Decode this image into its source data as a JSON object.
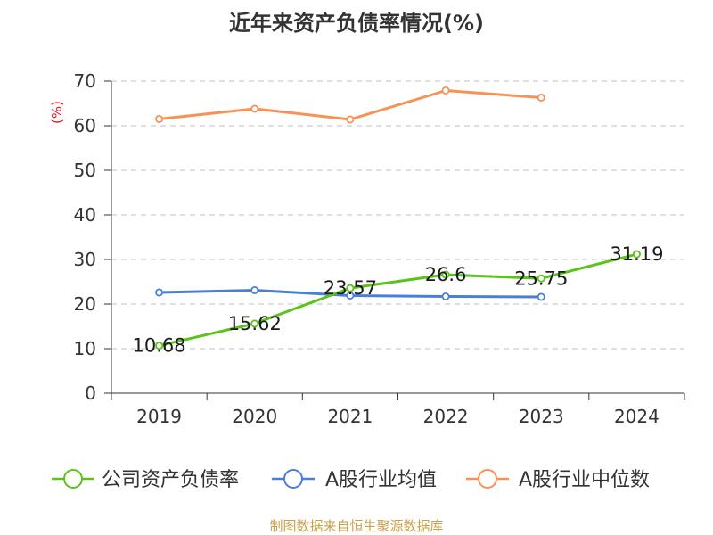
{
  "chart_data": {
    "type": "line",
    "title": "近年来资产负债率情况(%)",
    "ylabel": "(%)",
    "xlabel": "",
    "ylim": [
      0,
      70
    ],
    "yticks": [
      0,
      10,
      20,
      30,
      40,
      50,
      60,
      70
    ],
    "categories": [
      "2019",
      "2020",
      "2021",
      "2022",
      "2023",
      "2024"
    ],
    "grid": "horizontal dashed",
    "legend_position": "bottom",
    "series": [
      {
        "name": "公司资产负债率",
        "color": "#5cc21c",
        "values": [
          10.68,
          15.62,
          23.57,
          26.6,
          25.75,
          31.19
        ],
        "labels": [
          "10.68",
          "15.62",
          "23.57",
          "26.6",
          "25.75",
          "31.19"
        ]
      },
      {
        "name": "A股行业均值",
        "color": "#4a7fd8",
        "values": [
          22.6,
          23.1,
          21.9,
          21.7,
          21.6,
          null
        ]
      },
      {
        "name": "A股行业中位数",
        "color": "#f79256",
        "values": [
          61.5,
          63.8,
          61.4,
          67.9,
          66.3,
          null
        ]
      }
    ]
  },
  "footer": {
    "source": "制图数据来自恒生聚源数据库"
  }
}
